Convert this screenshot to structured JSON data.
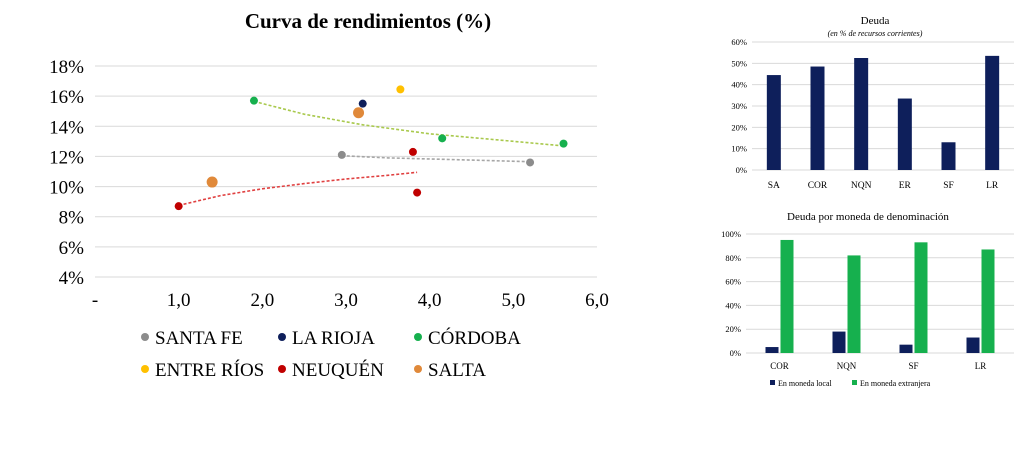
{
  "chart_data": [
    {
      "type": "scatter",
      "title": "Curva de rendimientos (%)",
      "xlim": [
        0,
        6
      ],
      "ylim": [
        4,
        18
      ],
      "x_ticks": [
        "-",
        "1,0",
        "2,0",
        "3,0",
        "4,0",
        "5,0",
        "6,0"
      ],
      "y_ticks": [
        "4%",
        "6%",
        "8%",
        "10%",
        "12%",
        "14%",
        "16%",
        "18%"
      ],
      "grid": true,
      "legend_position": "bottom",
      "series": [
        {
          "name": "SANTA FE",
          "color": "#8c8c8c",
          "trend_color": "#a6a6a6",
          "points": [
            {
              "x": 2.95,
              "y": 12.1
            },
            {
              "x": 5.2,
              "y": 11.6
            }
          ],
          "trend": [
            {
              "x": 2.95,
              "y": 12.05
            },
            {
              "x": 3.5,
              "y": 11.9
            },
            {
              "x": 4.2,
              "y": 11.8
            },
            {
              "x": 5.2,
              "y": 11.65
            }
          ]
        },
        {
          "name": "LA RIOJA",
          "color": "#0e1f5b",
          "trend_color": null,
          "points": [
            {
              "x": 3.2,
              "y": 15.5
            }
          ],
          "trend": []
        },
        {
          "name": "CÓRDOBA",
          "color": "#16b04e",
          "trend_color": "#a9c94d",
          "points": [
            {
              "x": 1.9,
              "y": 15.7
            },
            {
              "x": 4.15,
              "y": 13.2
            },
            {
              "x": 5.6,
              "y": 12.85
            }
          ],
          "trend": [
            {
              "x": 1.9,
              "y": 15.65
            },
            {
              "x": 2.5,
              "y": 14.8
            },
            {
              "x": 3.2,
              "y": 14.1
            },
            {
              "x": 4.0,
              "y": 13.5
            },
            {
              "x": 4.8,
              "y": 13.1
            },
            {
              "x": 5.6,
              "y": 12.7
            }
          ]
        },
        {
          "name": "ENTRE RÍOS",
          "color": "#ffc000",
          "trend_color": null,
          "points": [
            {
              "x": 3.65,
              "y": 16.45
            }
          ],
          "trend": []
        },
        {
          "name": "NEUQUÉN",
          "color": "#c00000",
          "trend_color": "#e04040",
          "points": [
            {
              "x": 1.0,
              "y": 8.7
            },
            {
              "x": 3.8,
              "y": 12.3
            },
            {
              "x": 3.85,
              "y": 9.6
            }
          ],
          "trend": [
            {
              "x": 1.0,
              "y": 8.75
            },
            {
              "x": 1.5,
              "y": 9.4
            },
            {
              "x": 2.0,
              "y": 9.85
            },
            {
              "x": 2.5,
              "y": 10.2
            },
            {
              "x": 3.0,
              "y": 10.5
            },
            {
              "x": 3.5,
              "y": 10.75
            },
            {
              "x": 3.85,
              "y": 10.95
            }
          ]
        },
        {
          "name": "SALTA",
          "color": "#e0893a",
          "trend_color": null,
          "big": true,
          "points": [
            {
              "x": 1.4,
              "y": 10.3
            },
            {
              "x": 3.15,
              "y": 14.9
            }
          ],
          "trend": []
        }
      ]
    },
    {
      "type": "bar",
      "title": "Deuda",
      "subtitle": "(en % de recursos corrientes)",
      "categories": [
        "SA",
        "COR",
        "NQN",
        "ER",
        "SF",
        "LR"
      ],
      "values": [
        44.5,
        48.5,
        52.5,
        33.5,
        13,
        53.5
      ],
      "ylim": [
        0,
        60
      ],
      "y_ticks": [
        "0%",
        "10%",
        "20%",
        "30%",
        "40%",
        "50%",
        "60%"
      ],
      "color": "#0e1f5b",
      "grid": true
    },
    {
      "type": "bar",
      "title": "Deuda por moneda de denominación",
      "categories": [
        "COR",
        "NQN",
        "SF",
        "LR"
      ],
      "ylim": [
        0,
        100
      ],
      "y_ticks": [
        "0%",
        "20%",
        "40%",
        "60%",
        "80%",
        "100%"
      ],
      "legend_position": "bottom",
      "grid": true,
      "series": [
        {
          "name": "En moneda local",
          "color": "#0e1f5b",
          "values": [
            5,
            18,
            7,
            13
          ]
        },
        {
          "name": "En moneda extranjera",
          "color": "#16b04e",
          "values": [
            95,
            82,
            93,
            87
          ]
        }
      ]
    }
  ]
}
